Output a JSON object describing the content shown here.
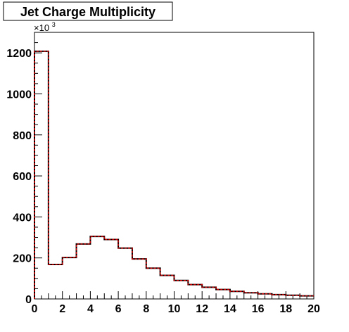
{
  "chart_data": {
    "type": "bar",
    "title": "Jet Charge Multiplicity",
    "xlabel": "",
    "ylabel": "",
    "y_multiplier_label": "×10",
    "y_multiplier_exponent": "3",
    "xlim": [
      0,
      20
    ],
    "ylim": [
      0,
      1300
    ],
    "x_tick_labels": [
      "0",
      "2",
      "4",
      "6",
      "8",
      "10",
      "12",
      "14",
      "16",
      "18",
      "20"
    ],
    "y_tick_labels": [
      "0",
      "200",
      "400",
      "600",
      "800",
      "1000",
      "1200"
    ],
    "grid": false,
    "bin_edges": [
      0,
      1,
      2,
      3,
      4,
      5,
      6,
      7,
      8,
      9,
      10,
      11,
      12,
      13,
      14,
      15,
      16,
      17,
      18,
      19,
      20
    ],
    "series": [
      {
        "values": [
          1208,
          168,
          202,
          268,
          305,
          290,
          248,
          195,
          150,
          115,
          90,
          70,
          57,
          46,
          37,
          30,
          25,
          21,
          18,
          15
        ],
        "color": "#000000",
        "style": "solid"
      },
      {
        "values": [
          1208,
          168,
          202,
          268,
          305,
          290,
          248,
          195,
          150,
          115,
          90,
          70,
          57,
          46,
          37,
          30,
          25,
          21,
          18,
          15
        ],
        "color": "#cc0000",
        "style": "dashed"
      }
    ]
  }
}
